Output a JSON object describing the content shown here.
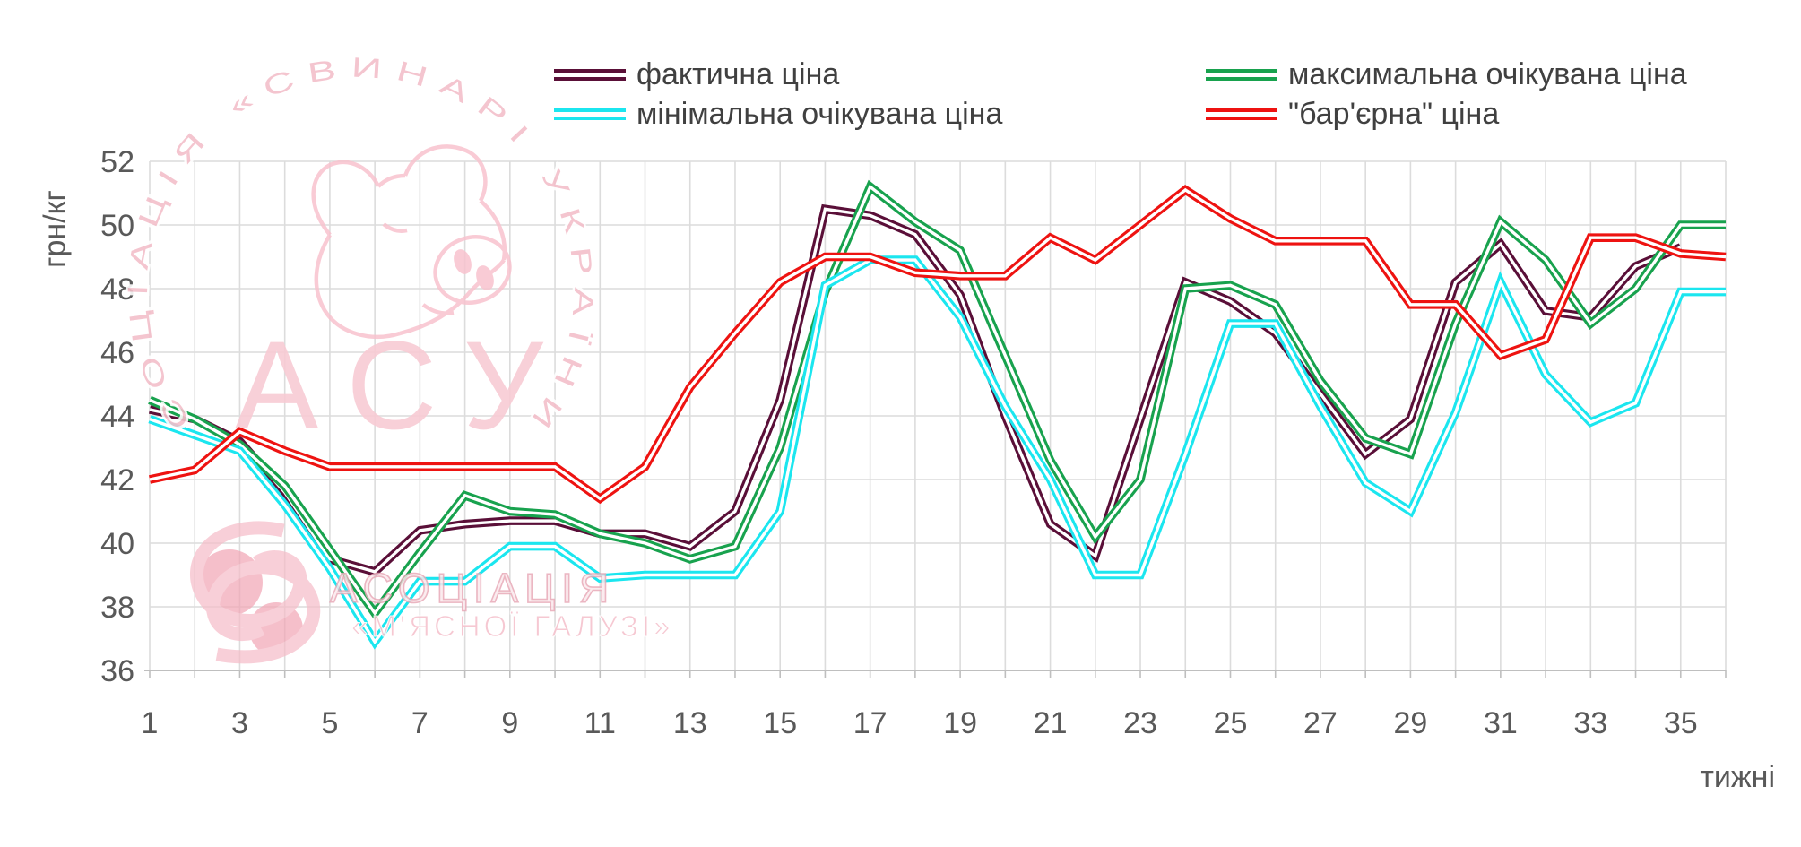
{
  "axes": {
    "y_unit_label": "грн/кг",
    "x_unit_label": "тижні"
  },
  "watermark": {
    "arc_text": "СОЦІАЦІЯ «СВИНАРІ УКРАЇНИ»",
    "acronym": "АСУ",
    "assoc_line1": "АСОЦІАЦІЯ",
    "assoc_line2": "«М'ЯСНОЇ ГАЛУЗІ»",
    "pink": "#F6BCC8"
  },
  "chart_data": {
    "type": "line",
    "title": "",
    "xlabel": "тижні",
    "ylabel": "грн/кг",
    "ylim": [
      36,
      52
    ],
    "ytick_step": 2,
    "yticks": [
      36,
      38,
      40,
      42,
      44,
      46,
      48,
      50,
      52
    ],
    "xlim": [
      1,
      36
    ],
    "xticks": [
      1,
      3,
      5,
      7,
      9,
      11,
      13,
      15,
      17,
      19,
      21,
      23,
      25,
      27,
      29,
      31,
      33,
      35
    ],
    "grid": true,
    "legend_position": "top",
    "weeks": [
      1,
      2,
      3,
      4,
      5,
      6,
      7,
      8,
      9,
      10,
      11,
      12,
      13,
      14,
      15,
      16,
      17,
      18,
      19,
      20,
      21,
      22,
      23,
      24,
      25,
      26,
      27,
      28,
      29,
      30,
      31,
      32,
      33,
      34,
      35,
      36
    ],
    "series": [
      {
        "key": "faktychna",
        "name": "фактична ціна",
        "color": "#5A0F38",
        "values": [
          44.2,
          43.9,
          43.2,
          41.6,
          39.5,
          39.1,
          40.4,
          40.6,
          40.7,
          40.7,
          40.3,
          40.3,
          39.9,
          41.0,
          44.5,
          50.5,
          50.3,
          49.7,
          47.8,
          44.0,
          40.6,
          39.6,
          43.9,
          48.2,
          47.6,
          46.6,
          44.7,
          42.8,
          43.9,
          48.2,
          49.4,
          47.3,
          47.1,
          48.7,
          49.3,
          null
        ]
      },
      {
        "key": "maksymalna-ochikuvana",
        "name": "максимальна очікувана ціна",
        "color": "#18A24E",
        "values": [
          44.5,
          43.9,
          43.1,
          41.8,
          39.8,
          37.8,
          39.7,
          41.5,
          41.0,
          40.9,
          40.3,
          40.0,
          39.5,
          39.9,
          43.0,
          47.9,
          51.2,
          50.1,
          49.2,
          45.9,
          42.6,
          40.2,
          42.0,
          48.0,
          48.1,
          47.5,
          45.1,
          43.3,
          42.8,
          46.9,
          50.1,
          48.9,
          46.9,
          48.0,
          50.0,
          50.0
        ]
      },
      {
        "key": "minimalna-ochikuvana",
        "name": "мінімальна очікувана ціна",
        "color": "#1BE6EF",
        "values": [
          43.9,
          43.4,
          42.9,
          41.2,
          39.2,
          36.9,
          38.8,
          38.8,
          39.9,
          39.9,
          38.9,
          39.0,
          39.0,
          39.0,
          41.0,
          48.1,
          48.9,
          48.9,
          47.1,
          44.3,
          42.0,
          39.0,
          39.0,
          42.8,
          46.9,
          46.9,
          44.3,
          41.9,
          41.0,
          44.1,
          48.2,
          45.3,
          43.8,
          44.4,
          47.9,
          47.9
        ]
      },
      {
        "key": "baryerna",
        "name": "\"бар'єрна\" ціна",
        "color": "#EE1311",
        "values": [
          42.0,
          42.3,
          43.5,
          42.9,
          42.4,
          42.4,
          42.4,
          42.4,
          42.4,
          42.4,
          41.4,
          42.4,
          44.9,
          46.6,
          48.2,
          49.0,
          49.0,
          48.5,
          48.4,
          48.4,
          49.6,
          48.9,
          50.0,
          51.1,
          50.2,
          49.5,
          49.5,
          49.5,
          47.5,
          47.5,
          45.9,
          46.4,
          49.6,
          49.6,
          49.1,
          49.0
        ]
      }
    ]
  },
  "style": {
    "gridline_color": "#DCDCDC",
    "axisline_color": "#BFBFBF",
    "tick_text_color": "#595959"
  }
}
